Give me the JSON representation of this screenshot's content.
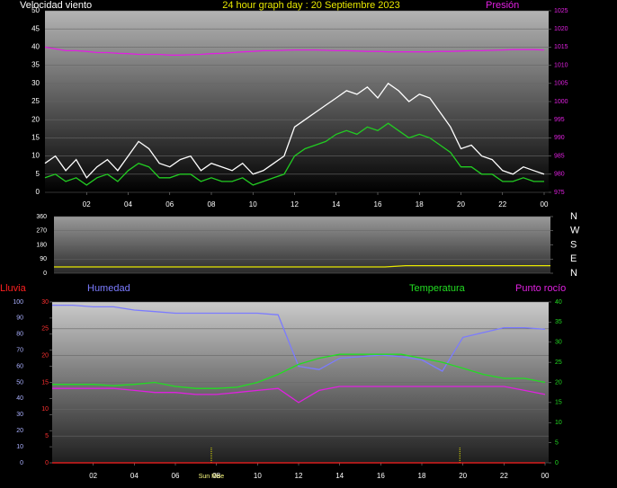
{
  "chart_data": [
    {
      "type": "line",
      "title": "24 hour graph day : 20 Septiembre 2023",
      "y_label": "Velocidad viento",
      "y2_label": "Presión",
      "x": [
        0,
        0.5,
        1,
        1.5,
        2,
        2.5,
        3,
        3.5,
        4,
        4.5,
        5,
        5.5,
        6,
        6.5,
        7,
        7.5,
        8,
        8.5,
        9,
        9.5,
        10,
        10.5,
        11,
        11.5,
        12,
        12.5,
        13,
        13.5,
        14,
        14.5,
        15,
        15.5,
        16,
        16.5,
        17,
        17.5,
        18,
        18.5,
        19,
        19.5,
        20,
        20.5,
        21,
        21.5,
        22,
        22.5,
        23,
        23.5,
        24
      ],
      "xlim": [
        0,
        24
      ],
      "xticks": [
        {
          "value": 2,
          "label": "02"
        },
        {
          "value": 4,
          "label": "04"
        },
        {
          "value": 6,
          "label": "06"
        },
        {
          "value": 8,
          "label": "08"
        },
        10,
        12,
        14,
        16,
        18,
        20,
        22,
        {
          "value": 24,
          "label": "00"
        }
      ],
      "ylim": [
        0,
        50
      ],
      "yticks": [
        0,
        5,
        10,
        15,
        20,
        25,
        30,
        35,
        40,
        45,
        50
      ],
      "y2lim": [
        975,
        1025
      ],
      "y2ticks": [
        975,
        980,
        985,
        990,
        995,
        1000,
        1005,
        1010,
        1015,
        1020,
        1025
      ],
      "grid": true,
      "series": [
        {
          "color": "#ffffff",
          "values": [
            8,
            10,
            6,
            9,
            4,
            7,
            9,
            6,
            10,
            14,
            12,
            8,
            7,
            9,
            10,
            6,
            8,
            7,
            6,
            8,
            5,
            6,
            8,
            10,
            18,
            20,
            22,
            24,
            26,
            28,
            27,
            29,
            26,
            30,
            28,
            25,
            27,
            26,
            22,
            18,
            12,
            13,
            10,
            9,
            6,
            5,
            7,
            6,
            5
          ]
        },
        {
          "color": "#22cc22",
          "values": [
            4,
            5,
            3,
            4,
            2,
            4,
            5,
            3,
            6,
            8,
            7,
            4,
            4,
            5,
            5,
            3,
            4,
            3,
            3,
            4,
            2,
            3,
            4,
            5,
            10,
            12,
            13,
            14,
            16,
            17,
            16,
            18,
            17,
            19,
            17,
            15,
            16,
            15,
            13,
            11,
            7,
            7,
            5,
            5,
            3,
            3,
            4,
            3,
            3
          ]
        },
        {
          "color": "#e020e0",
          "axis": "y2",
          "values": [
            1015,
            1014.5,
            1014,
            1014,
            1013.8,
            1013.5,
            1013.5,
            1013.3,
            1013.2,
            1013,
            1013,
            1013,
            1012.8,
            1012.8,
            1012.9,
            1013,
            1013.2,
            1013.3,
            1013.5,
            1013.7,
            1013.8,
            1014,
            1014,
            1014.1,
            1014.2,
            1014.2,
            1014.2,
            1014.1,
            1014,
            1014,
            1013.9,
            1013.8,
            1013.8,
            1013.7,
            1013.7,
            1013.7,
            1013.7,
            1013.7,
            1013.8,
            1013.8,
            1013.9,
            1014,
            1014,
            1014.1,
            1014.2,
            1014.3,
            1014.3,
            1014.3,
            1014.2
          ]
        }
      ]
    },
    {
      "type": "line",
      "x": [
        0,
        1,
        2,
        3,
        4,
        5,
        6,
        7,
        8,
        9,
        10,
        11,
        12,
        13,
        14,
        15,
        16,
        17,
        18,
        19,
        20,
        21,
        22,
        23,
        24
      ],
      "xlim": [
        0,
        24
      ],
      "ylim": [
        0,
        360
      ],
      "yticks": [
        0,
        90,
        180,
        270,
        360
      ],
      "y2lim": [
        0,
        360
      ],
      "y2ticks": [
        {
          "value": 360,
          "label": "N"
        },
        {
          "value": 270,
          "label": "W"
        },
        {
          "value": 180,
          "label": "S"
        },
        {
          "value": 90,
          "label": "E"
        },
        {
          "value": 0,
          "label": "N"
        }
      ],
      "grid": true,
      "series": [
        {
          "color": "#e8e800",
          "values": [
            40,
            40,
            40,
            40,
            40,
            40,
            40,
            40,
            40,
            40,
            40,
            40,
            40,
            40,
            40,
            40,
            40,
            48,
            48,
            48,
            48,
            48,
            48,
            48,
            48
          ]
        }
      ]
    },
    {
      "type": "line",
      "x": [
        0,
        1,
        2,
        3,
        4,
        5,
        6,
        7,
        8,
        9,
        10,
        11,
        12,
        13,
        14,
        15,
        16,
        17,
        18,
        19,
        20,
        21,
        22,
        23,
        24
      ],
      "xlim": [
        0,
        24
      ],
      "xticks": [
        {
          "value": 2,
          "label": "02"
        },
        {
          "value": 4,
          "label": "04"
        },
        {
          "value": 6,
          "label": "06"
        },
        {
          "value": 8,
          "label": "08"
        },
        10,
        12,
        14,
        16,
        18,
        20,
        22,
        {
          "value": 24,
          "label": "00"
        }
      ],
      "ylim": [
        0,
        30
      ],
      "yticks": [
        0,
        5,
        10,
        15,
        20,
        25,
        30
      ],
      "y3lim": [
        0,
        100
      ],
      "y3ticks": [
        0,
        10,
        20,
        30,
        40,
        50,
        60,
        70,
        80,
        90,
        100
      ],
      "y2lim": [
        0,
        40
      ],
      "y2ticks": [
        0,
        5,
        10,
        15,
        20,
        25,
        30,
        35,
        40
      ],
      "grid": true,
      "annotations": [
        {
          "text": "Sun Rise",
          "x": 7.75
        }
      ],
      "sun_lines": [
        7.75,
        19.85
      ],
      "series": [
        {
          "name": "Lluvia",
          "color": "#ff2020",
          "values": [
            0,
            0,
            0,
            0,
            0,
            0,
            0,
            0,
            0,
            0,
            0,
            0,
            0,
            0,
            0,
            0,
            0,
            0,
            0,
            0,
            0,
            0,
            0,
            0,
            0
          ]
        },
        {
          "name": "Humedad",
          "color": "#7b7bff",
          "axis": "y3",
          "values": [
            98,
            98,
            97,
            97,
            95,
            94,
            93,
            93,
            93,
            93,
            93,
            92,
            60,
            58,
            65,
            66,
            67,
            66,
            64,
            57,
            78,
            81,
            84,
            84,
            83
          ]
        },
        {
          "name": "Temperatura",
          "color": "#22dd22",
          "axis": "y2",
          "values": [
            19.5,
            19.5,
            19.5,
            19.2,
            19.5,
            20,
            19,
            18.5,
            18.5,
            18.8,
            20,
            22,
            24.5,
            26,
            27,
            27,
            27,
            27,
            26,
            25,
            23.5,
            22,
            21,
            21,
            20
          ]
        },
        {
          "name": "Punto rocío",
          "color": "#e020e0",
          "axis": "y2",
          "values": [
            18.5,
            18.5,
            18.5,
            18.5,
            18,
            17.5,
            17.5,
            17,
            17,
            17.5,
            18,
            18.5,
            15,
            18,
            19,
            19,
            19,
            19,
            19,
            19,
            19,
            19,
            19,
            18,
            17
          ]
        }
      ]
    }
  ]
}
